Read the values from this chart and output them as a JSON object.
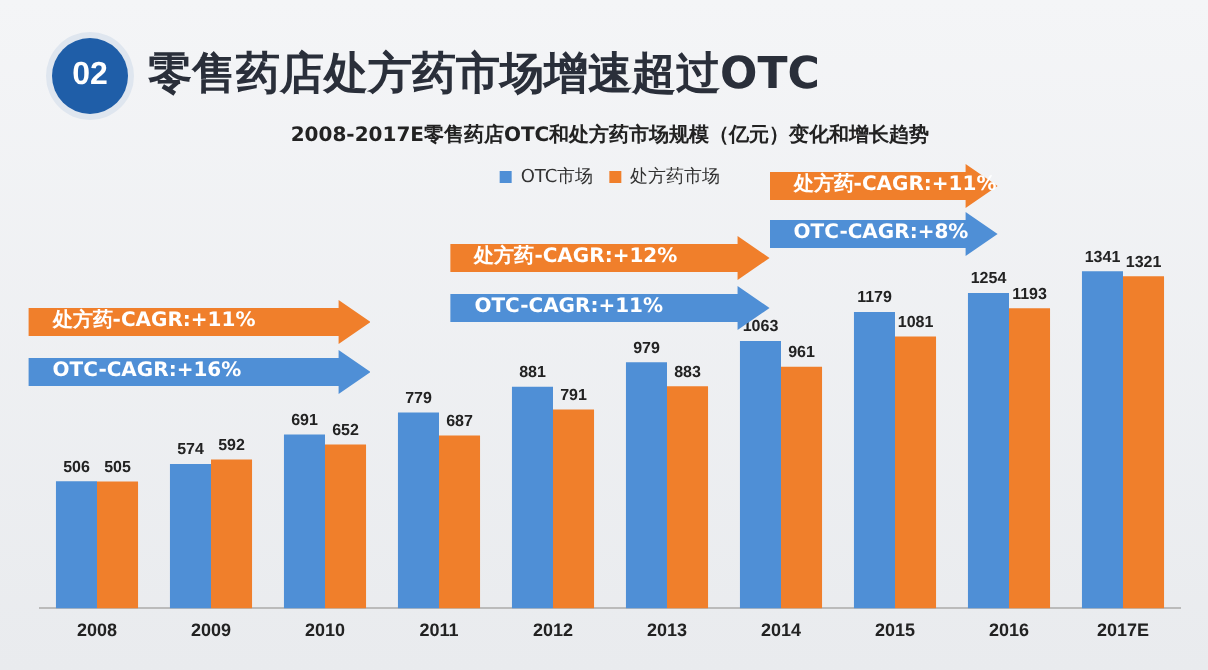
{
  "chart_data": {
    "type": "bar",
    "title": "零售药店处方药市场增速超过OTC",
    "subtitle": "2008-2017E零售药店OTC和处方药市场规模（亿元）变化和增长趋势",
    "categories": [
      "2008",
      "2009",
      "2010",
      "2011",
      "2012",
      "2013",
      "2014",
      "2015",
      "2016",
      "2017E"
    ],
    "series": [
      {
        "name": "OTC市场",
        "color": "#4f8fd6",
        "values": [
          506,
          574,
          691,
          779,
          881,
          979,
          1063,
          1179,
          1254,
          1341
        ]
      },
      {
        "name": "处方药市场",
        "color": "#f07f2b",
        "values": [
          505,
          592,
          652,
          687,
          791,
          883,
          961,
          1081,
          1193,
          1321
        ]
      }
    ],
    "data_labels": true,
    "legend": "top",
    "grid": false,
    "tick_labels": "x",
    "annotations": [
      "02",
      "处方药-CAGR:+11%",
      "OTC-CAGR:+16%",
      "处方药-CAGR:+12%",
      "OTC-CAGR:+11%",
      "处方药-CAGR:+11%",
      "OTC-CAGR:+8%"
    ]
  }
}
